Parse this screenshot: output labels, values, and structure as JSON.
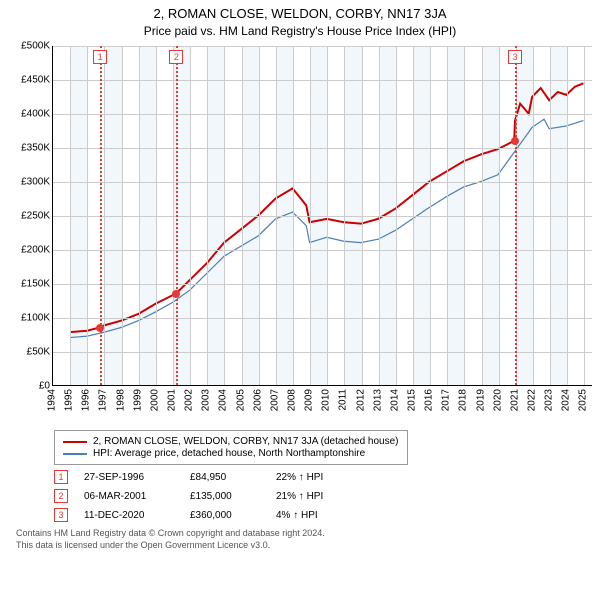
{
  "title": "2, ROMAN CLOSE, WELDON, CORBY, NN17 3JA",
  "subtitle": "Price paid vs. HM Land Registry's House Price Index (HPI)",
  "chart": {
    "type": "line",
    "xlim": [
      1994,
      2025.5
    ],
    "ylim": [
      0,
      500000
    ],
    "ytick_step": 50000,
    "yticks_labels": [
      "£0",
      "£50K",
      "£100K",
      "£150K",
      "£200K",
      "£250K",
      "£300K",
      "£350K",
      "£400K",
      "£450K",
      "£500K"
    ],
    "xticks": [
      1994,
      1995,
      1996,
      1997,
      1998,
      1999,
      2000,
      2001,
      2002,
      2003,
      2004,
      2005,
      2006,
      2007,
      2008,
      2009,
      2010,
      2011,
      2012,
      2013,
      2014,
      2015,
      2016,
      2017,
      2018,
      2019,
      2020,
      2021,
      2022,
      2023,
      2024,
      2025
    ],
    "grid_color": "#cccccc",
    "shade_color": "#eaf2fa",
    "background_color": "#ffffff",
    "series": [
      {
        "name": "price_paid",
        "label": "2, ROMAN CLOSE, WELDON, CORBY, NN17 3JA (detached house)",
        "color": "#cc0000",
        "width": 2,
        "points": [
          [
            1995,
            78000
          ],
          [
            1996,
            80000
          ],
          [
            1996.75,
            84950
          ],
          [
            1997,
            88000
          ],
          [
            1998,
            95000
          ],
          [
            1999,
            105000
          ],
          [
            2000,
            120000
          ],
          [
            2001.2,
            135000
          ],
          [
            2002,
            155000
          ],
          [
            2003,
            180000
          ],
          [
            2004,
            210000
          ],
          [
            2005,
            230000
          ],
          [
            2006,
            250000
          ],
          [
            2007,
            275000
          ],
          [
            2008,
            290000
          ],
          [
            2008.8,
            265000
          ],
          [
            2009,
            240000
          ],
          [
            2010,
            245000
          ],
          [
            2011,
            240000
          ],
          [
            2012,
            238000
          ],
          [
            2013,
            245000
          ],
          [
            2014,
            260000
          ],
          [
            2015,
            280000
          ],
          [
            2016,
            300000
          ],
          [
            2017,
            315000
          ],
          [
            2018,
            330000
          ],
          [
            2019,
            340000
          ],
          [
            2020,
            348000
          ],
          [
            2020.95,
            360000
          ],
          [
            2021,
            390000
          ],
          [
            2021.3,
            415000
          ],
          [
            2021.8,
            400000
          ],
          [
            2022,
            425000
          ],
          [
            2022.5,
            438000
          ],
          [
            2023,
            420000
          ],
          [
            2023.5,
            432000
          ],
          [
            2024,
            428000
          ],
          [
            2024.5,
            440000
          ],
          [
            2025,
            445000
          ]
        ]
      },
      {
        "name": "hpi",
        "label": "HPI: Average price, detached house, North Northamptonshire",
        "color": "#4a7fb8",
        "width": 1.2,
        "points": [
          [
            1995,
            70000
          ],
          [
            1996,
            72000
          ],
          [
            1997,
            78000
          ],
          [
            1998,
            85000
          ],
          [
            1999,
            95000
          ],
          [
            2000,
            108000
          ],
          [
            2001,
            122000
          ],
          [
            2002,
            140000
          ],
          [
            2003,
            165000
          ],
          [
            2004,
            190000
          ],
          [
            2005,
            205000
          ],
          [
            2006,
            220000
          ],
          [
            2007,
            245000
          ],
          [
            2008,
            255000
          ],
          [
            2008.8,
            235000
          ],
          [
            2009,
            210000
          ],
          [
            2010,
            218000
          ],
          [
            2011,
            212000
          ],
          [
            2012,
            210000
          ],
          [
            2013,
            215000
          ],
          [
            2014,
            228000
          ],
          [
            2015,
            245000
          ],
          [
            2016,
            262000
          ],
          [
            2017,
            278000
          ],
          [
            2018,
            292000
          ],
          [
            2019,
            300000
          ],
          [
            2020,
            310000
          ],
          [
            2021,
            345000
          ],
          [
            2022,
            380000
          ],
          [
            2022.7,
            392000
          ],
          [
            2023,
            378000
          ],
          [
            2024,
            382000
          ],
          [
            2025,
            390000
          ]
        ]
      }
    ],
    "markers": [
      {
        "n": "1",
        "x": 1996.75,
        "y": 84950
      },
      {
        "n": "2",
        "x": 2001.2,
        "y": 135000
      },
      {
        "n": "3",
        "x": 2020.95,
        "y": 360000
      }
    ],
    "marker_color": "#e53935"
  },
  "legend": {
    "items": [
      {
        "color": "#cc0000",
        "label": "2, ROMAN CLOSE, WELDON, CORBY, NN17 3JA (detached house)"
      },
      {
        "color": "#4a7fb8",
        "label": "HPI: Average price, detached house, North Northamptonshire"
      }
    ]
  },
  "events": [
    {
      "n": "1",
      "date": "27-SEP-1996",
      "price": "£84,950",
      "delta": "22% ↑ HPI"
    },
    {
      "n": "2",
      "date": "06-MAR-2001",
      "price": "£135,000",
      "delta": "21% ↑ HPI"
    },
    {
      "n": "3",
      "date": "11-DEC-2020",
      "price": "£360,000",
      "delta": "4% ↑ HPI"
    }
  ],
  "footer": {
    "line1": "Contains HM Land Registry data © Crown copyright and database right 2024.",
    "line2": "This data is licensed under the Open Government Licence v3.0."
  }
}
